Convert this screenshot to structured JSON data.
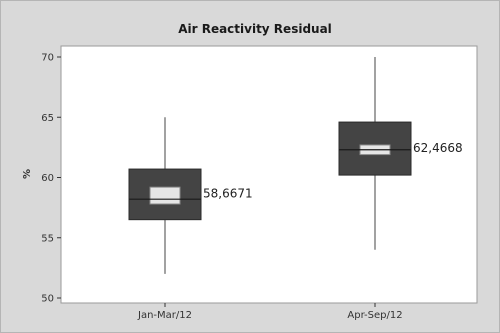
{
  "chart_data": {
    "type": "boxplot",
    "title": "Air Reactivity Residual",
    "ylabel": "%",
    "xlabel": "",
    "ylim": [
      50,
      70
    ],
    "yticks": [
      50,
      55,
      60,
      65,
      70
    ],
    "grid": false,
    "categories": [
      "Jan-Mar/12",
      "Apr-Sep/12"
    ],
    "boxes": [
      {
        "category": "Jan-Mar/12",
        "min": 52.0,
        "q1": 56.5,
        "median": 58.2,
        "q3": 60.7,
        "max": 65.0,
        "ci_low": 57.8,
        "ci_high": 59.2,
        "mean": 58.6671,
        "mean_label": "58,6671"
      },
      {
        "category": "Apr-Sep/12",
        "min": 54.0,
        "q1": 60.2,
        "median": 62.3,
        "q3": 64.6,
        "max": 70.0,
        "ci_low": 61.9,
        "ci_high": 62.7,
        "mean": 62.4668,
        "mean_label": "62,4668"
      }
    ],
    "colors": {
      "box": "#444444",
      "ci_box": "#e6e6e6",
      "background": "#d9d9d9",
      "plot_area": "#ffffff",
      "axis": "#333333"
    }
  }
}
